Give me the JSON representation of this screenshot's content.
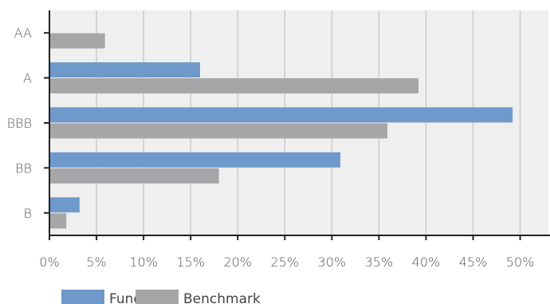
{
  "chart_data": {
    "type": "bar",
    "orientation": "horizontal",
    "categories": [
      "AA",
      "A",
      "BBB",
      "BB",
      "B"
    ],
    "series": [
      {
        "name": "Fund",
        "color": "#6f99cb",
        "values": [
          0,
          16,
          49.2,
          30.9,
          3.2
        ]
      },
      {
        "name": "Benchmark",
        "color": "#a6a6a8",
        "values": [
          5.9,
          39.2,
          35.9,
          18,
          1.8
        ]
      }
    ],
    "x_ticks": [
      "0%",
      "5%",
      "10%",
      "15%",
      "20%",
      "25%",
      "30%",
      "35%",
      "40%",
      "45%",
      "50%"
    ],
    "xlim": [
      0,
      53
    ],
    "grid": "vertical",
    "legend_position": "bottom-left",
    "title": "",
    "xlabel": "",
    "ylabel": ""
  },
  "colors": {
    "plot_background": "#efefef",
    "gridline": "#cccccc",
    "axis": "#222222"
  }
}
